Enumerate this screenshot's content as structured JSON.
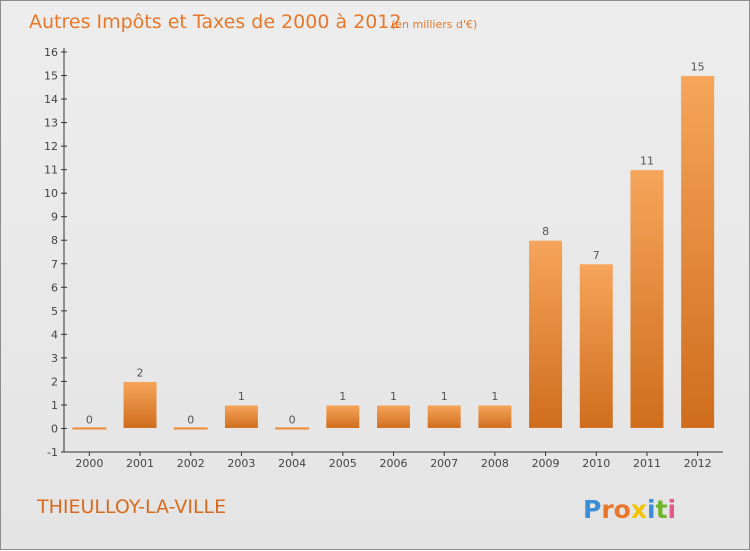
{
  "chart_data": {
    "type": "bar",
    "title": "Autres Impôts et Taxes de 2000 à 2012",
    "subtitle": "(en milliers d'€)",
    "categories": [
      "2000",
      "2001",
      "2002",
      "2003",
      "2004",
      "2005",
      "2006",
      "2007",
      "2008",
      "2009",
      "2010",
      "2011",
      "2012"
    ],
    "values": [
      0,
      2,
      0,
      1,
      0,
      1,
      1,
      1,
      1,
      8,
      7,
      11,
      15
    ],
    "value_labels": [
      "0",
      "2",
      "0",
      "1",
      "0",
      "1",
      "1",
      "1",
      "1",
      "8",
      "7",
      "11",
      "15"
    ],
    "ylim": [
      -1,
      16
    ],
    "yticks": [
      -1,
      0,
      1,
      2,
      3,
      4,
      5,
      6,
      7,
      8,
      9,
      10,
      11,
      12,
      13,
      14,
      15,
      16
    ],
    "grid": false,
    "bar_color": "#f0892f"
  },
  "commune": "THIEULLOY-LA-VILLE",
  "brand": {
    "letters": [
      "P",
      "r",
      "o",
      "x",
      "i",
      "t",
      "i"
    ],
    "colors": [
      "#3b8fd6",
      "#e8772a",
      "#e8772a",
      "#f2c200",
      "#3b8fd6",
      "#6fb62c",
      "#e05a8a"
    ]
  }
}
